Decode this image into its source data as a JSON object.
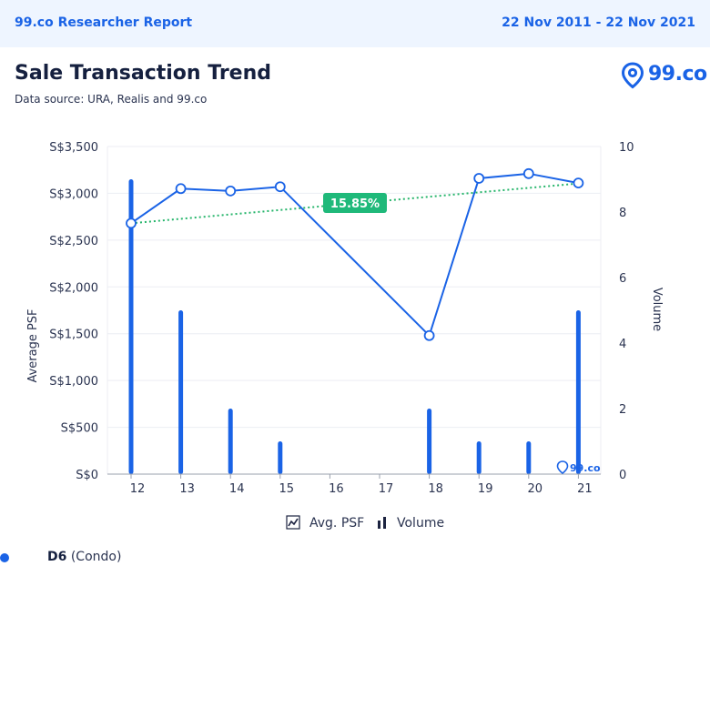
{
  "header": {
    "report_label": "99.co Researcher Report",
    "date_range": "22 Nov 2011 - 22 Nov 2021"
  },
  "title": "Sale Transaction Trend",
  "source": "Data source: URA, Realis and 99.co",
  "logo": {
    "text": "99.co",
    "icon": "location-pin-icon"
  },
  "colors": {
    "accent": "#1a63e6",
    "trend": "#26b56b",
    "badge": "#1fb97a",
    "grid": "#eceef3"
  },
  "legend": {
    "avg_psf_label": "Avg. PSF",
    "volume_label": "Volume",
    "avg_psf_icon": "line-chart-icon",
    "volume_icon": "bar-chart-icon"
  },
  "district": {
    "name": "D6",
    "type": "(Condo)"
  },
  "chart_data": {
    "type": "bar+line",
    "categories": [
      "12",
      "13",
      "14",
      "15",
      "16",
      "17",
      "18",
      "19",
      "20",
      "21"
    ],
    "series": [
      {
        "name": "Avg. PSF",
        "type": "line",
        "axis": "left",
        "values": [
          2680,
          3050,
          3025,
          3070,
          null,
          null,
          1480,
          3160,
          3210,
          3110
        ]
      },
      {
        "name": "Volume",
        "type": "bar",
        "axis": "right",
        "values": [
          9,
          5,
          2,
          1,
          0,
          0,
          2,
          1,
          1,
          5
        ]
      }
    ],
    "trend": {
      "label": "15.85%",
      "from": 2680,
      "to": 3105
    },
    "ylabel": "Average PSF",
    "y2label": "Volume",
    "ylim": [
      0,
      3500
    ],
    "y2lim": [
      0,
      10
    ],
    "yticks": [
      "S$0",
      "S$500",
      "S$1,000",
      "S$1,500",
      "S$2,000",
      "S$2,500",
      "S$3,000",
      "S$3,500"
    ],
    "y2ticks": [
      "0",
      "2",
      "4",
      "6",
      "8",
      "10"
    ],
    "watermark": "99.co"
  }
}
